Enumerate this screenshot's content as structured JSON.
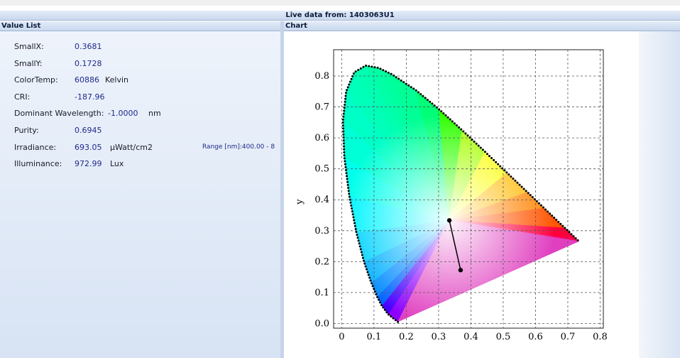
{
  "window": {
    "title": "Live data from: 1403063U1"
  },
  "value_list": {
    "title": "Value List",
    "rows": [
      {
        "label": "SmallX:",
        "value": "0.3681"
      },
      {
        "label": "SmallY:",
        "value": "0.1728"
      },
      {
        "label": "ColorTemp:",
        "value": "60886",
        "unit": "Kelvin"
      },
      {
        "label": "CRI:",
        "value": "-187.96"
      },
      {
        "label": "Dominant Wavelength:",
        "value": "-1.0000",
        "unit": "nm"
      },
      {
        "label": "Purity:",
        "value": "0.6945"
      },
      {
        "label": "Irradiance:",
        "value": "693.05",
        "unit": "μWatt/cm2"
      },
      {
        "label": "Illuminance:",
        "value": "972.99",
        "unit": "Lux"
      }
    ],
    "range": "Range [nm]:400.00 - 8"
  },
  "chart_panel": {
    "title": "Chart"
  },
  "chart_data": {
    "type": "scatter",
    "ylabel": "y",
    "x": [
      0.3333,
      0.3681
    ],
    "values": [
      0.3333,
      0.1728
    ],
    "color": "#000000",
    "connect": true,
    "locus_x": [
      0.1741,
      0.144,
      0.1241,
      0.1096,
      0.0913,
      0.0687,
      0.0454,
      0.0235,
      0.0082,
      0.0039,
      0.0139,
      0.0389,
      0.0743,
      0.1142,
      0.1547,
      0.2296,
      0.3016,
      0.3731,
      0.4441,
      0.5125,
      0.5752,
      0.627,
      0.6915,
      0.726,
      0.7347
    ],
    "locus_y": [
      0.005,
      0.0297,
      0.0578,
      0.0868,
      0.1327,
      0.2007,
      0.295,
      0.4127,
      0.5384,
      0.6548,
      0.7502,
      0.812,
      0.8338,
      0.8262,
      0.8059,
      0.7543,
      0.6923,
      0.6245,
      0.5547,
      0.4866,
      0.4242,
      0.3725,
      0.3083,
      0.274,
      0.2653
    ],
    "xlim": [
      -0.025,
      0.81
    ],
    "ylim": [
      -0.015,
      0.885
    ],
    "xticks": [
      0,
      0.1,
      0.2,
      0.3,
      0.4,
      0.5,
      0.6,
      0.7,
      0.8
    ],
    "yticks": [
      {
        "value": 0,
        "label": "0.0"
      },
      0.1,
      0.2,
      0.3,
      0.4,
      0.5,
      0.6,
      0.7,
      0.8
    ],
    "grid": true
  }
}
